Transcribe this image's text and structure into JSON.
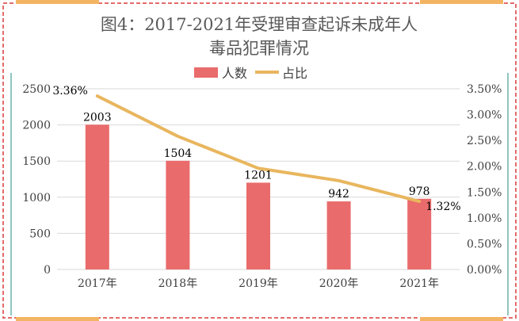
{
  "colors": {
    "bar": "#ea6b6b",
    "line": "#e9b65e",
    "border_dashed": "#e46a6a",
    "corner_accent": "#f3b463",
    "side_accent": "#8fc6bd",
    "grid": "#d9d9d9",
    "text": "#404040",
    "title": "#595959"
  },
  "chart_data": {
    "type": "bar",
    "title_line1": "图4：2017-2021年受理审查起诉未成年人",
    "title_line2": "毒品犯罪情况",
    "categories": [
      "2017年",
      "2018年",
      "2019年",
      "2020年",
      "2021年"
    ],
    "series": [
      {
        "name": "人数",
        "type": "bar",
        "axis": "left",
        "values": [
          2003,
          1504,
          1201,
          942,
          978
        ]
      },
      {
        "name": "占比",
        "type": "line",
        "axis": "right",
        "values": [
          3.36,
          2.58,
          1.96,
          1.72,
          1.32
        ]
      }
    ],
    "data_labels": {
      "bars": [
        "2003",
        "1504",
        "1201",
        "942",
        "978"
      ],
      "line": [
        "3.36%",
        "",
        "",
        "",
        "1.32%"
      ]
    },
    "y_left": {
      "ylim": [
        0,
        2500
      ],
      "ticks": [
        "0",
        "500",
        "1000",
        "1500",
        "2000",
        "2500"
      ]
    },
    "y_right": {
      "ylim": [
        0,
        3.5
      ],
      "ticks": [
        "0.00%",
        "0.50%",
        "1.00%",
        "1.50%",
        "2.00%",
        "2.50%",
        "3.00%",
        "3.50%"
      ]
    },
    "grid": true,
    "legend_position": "top"
  }
}
